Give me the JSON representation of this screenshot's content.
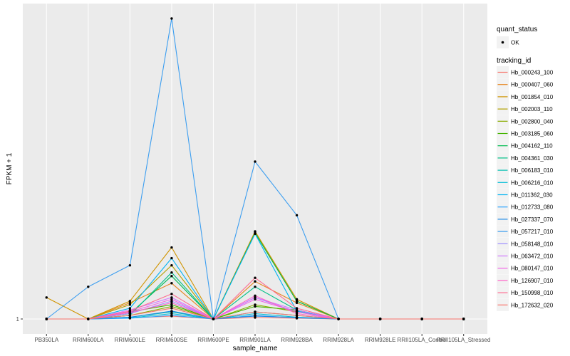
{
  "chart_data": {
    "type": "line",
    "xlabel": "sample_name",
    "ylabel": "FPKM + 1",
    "categories": [
      "PB350LA",
      "RRIM600LA",
      "RRIM600LE",
      "RRIM600SE",
      "RRIM600PE",
      "RRIM901LA",
      "RRIM928BA",
      "RRIM928LA",
      "RRIM928LE",
      "RRII105LA_Control",
      "RRII105LA_Stressed"
    ],
    "y_ticks": [
      "1"
    ],
    "grid": true,
    "legend_position": "right",
    "legend_quant": {
      "title": "quant_status",
      "items": [
        "OK"
      ]
    },
    "legend_tracking": {
      "title": "tracking_id"
    },
    "series": [
      {
        "name": "Hb_000243_100",
        "color": "#F8766D",
        "values": [
          1,
          1,
          1.3,
          1.8,
          1,
          1.4,
          1.2,
          1,
          1,
          1,
          1
        ]
      },
      {
        "name": "Hb_000407_060",
        "color": "#E7851E",
        "values": [
          1,
          1,
          5.5,
          11,
          1,
          11.5,
          5.5,
          1,
          1,
          1,
          1
        ]
      },
      {
        "name": "Hb_001854_010",
        "color": "#D09400",
        "values": [
          7,
          1,
          6,
          21,
          1,
          25.5,
          6.5,
          1,
          1,
          1,
          1
        ]
      },
      {
        "name": "Hb_002003_110",
        "color": "#B2A100",
        "values": [
          1,
          1,
          5,
          16,
          1,
          25.3,
          6,
          1,
          1,
          1,
          1
        ]
      },
      {
        "name": "Hb_002800_040",
        "color": "#89AC00",
        "values": [
          1,
          1,
          2,
          4.5,
          1,
          5,
          3,
          1,
          1,
          1,
          1
        ]
      },
      {
        "name": "Hb_003185_060",
        "color": "#45B500",
        "values": [
          1,
          1,
          3,
          5,
          1,
          4.5,
          3.5,
          1,
          1,
          1,
          1
        ]
      },
      {
        "name": "Hb_004162_110",
        "color": "#00BC51",
        "values": [
          1,
          1,
          2.5,
          13,
          1,
          25,
          6,
          1,
          1,
          1,
          1
        ]
      },
      {
        "name": "Hb_004361_030",
        "color": "#00C087",
        "values": [
          1,
          1,
          2,
          14,
          1,
          10,
          3.5,
          1,
          1,
          1,
          1
        ]
      },
      {
        "name": "Hb_006183_010",
        "color": "#00C0B2",
        "values": [
          1,
          1,
          1.5,
          3,
          1,
          3,
          2,
          1,
          1,
          1,
          1
        ]
      },
      {
        "name": "Hb_006216_010",
        "color": "#00BCD6",
        "values": [
          1,
          1,
          1.3,
          2.5,
          1,
          2.5,
          1.5,
          1,
          1,
          1,
          1
        ]
      },
      {
        "name": "Hb_011362_030",
        "color": "#00B3F2",
        "values": [
          1,
          1,
          4,
          18,
          1,
          24.8,
          3.2,
          1,
          1,
          1,
          1
        ]
      },
      {
        "name": "Hb_012733_080",
        "color": "#29A3FF",
        "values": [
          1,
          1,
          1.2,
          2,
          1,
          2,
          1.3,
          1,
          1,
          1,
          1
        ]
      },
      {
        "name": "Hb_027337_070",
        "color": "#1E8BE6",
        "values": [
          1,
          1,
          1.5,
          3.2,
          1,
          1.8,
          1.4,
          1,
          1,
          1,
          1
        ]
      },
      {
        "name": "Hb_057217_010",
        "color": "#3C9EF0",
        "values": [
          1,
          10,
          16,
          85,
          1,
          45,
          30,
          1,
          1,
          1,
          1
        ]
      },
      {
        "name": "Hb_058148_010",
        "color": "#9C8DFF",
        "values": [
          1,
          1,
          2.5,
          6,
          1,
          7,
          3,
          1,
          1,
          1,
          1
        ]
      },
      {
        "name": "Hb_063472_010",
        "color": "#D277FF",
        "values": [
          1,
          1,
          3.5,
          7,
          1,
          7,
          3.5,
          1,
          1,
          1,
          1
        ]
      },
      {
        "name": "Hb_080147_010",
        "color": "#F265E7",
        "values": [
          1,
          1,
          3,
          6.5,
          1,
          6.5,
          3,
          1,
          1,
          1,
          1
        ]
      },
      {
        "name": "Hb_126907_010",
        "color": "#FF61C7",
        "values": [
          1,
          1,
          2.8,
          5.5,
          1,
          7.5,
          2.5,
          1,
          1,
          1,
          1
        ]
      },
      {
        "name": "Hb_150998_010",
        "color": "#FF6C91",
        "values": [
          1,
          1,
          3.2,
          8,
          1,
          12.5,
          4,
          1,
          1,
          1,
          1
        ]
      },
      {
        "name": "Hb_172632_020",
        "color": "#F8766D",
        "values": [
          1,
          1,
          2,
          4,
          1,
          3,
          2,
          1,
          1,
          1,
          1
        ]
      }
    ]
  }
}
